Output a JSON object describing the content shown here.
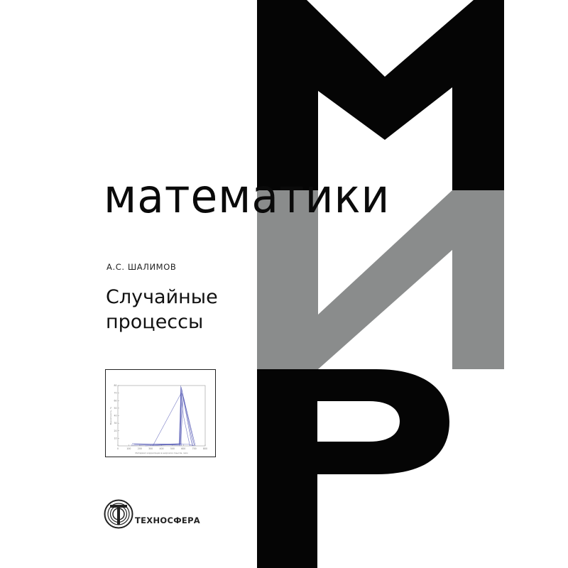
{
  "cover": {
    "series_letters": [
      "М",
      "И",
      "Р"
    ],
    "series_title": "математики",
    "author": "А.С. ШАЛИМОВ",
    "title_lines": [
      "Случайные",
      "процессы"
    ],
    "publisher": "ТЕХНОСФЕРА",
    "colors": {
      "black": "#050505",
      "gray": "#8a8c8c",
      "background": "#ffffff",
      "plot_lines": "#4a4fb0"
    }
  },
  "chart_data": {
    "type": "line",
    "xlabel": "Интервал корреляции в широком смысле, мкм",
    "ylabel": "Вероятность, %",
    "xlim": [
      0,
      800
    ],
    "ylim": [
      0,
      80
    ],
    "xticks": [
      "0",
      "100",
      "200",
      "300",
      "400",
      "500",
      "600",
      "700",
      "800"
    ],
    "yticks": [
      "10",
      "20",
      "30",
      "40",
      "50",
      "60",
      "70",
      "80"
    ],
    "grid": false,
    "series": [
      {
        "x": [
          120,
          560,
          580,
          690
        ],
        "y": [
          1,
          2,
          78,
          0
        ]
      },
      {
        "x": [
          150,
          565,
          585,
          700
        ],
        "y": [
          2,
          1,
          75,
          1
        ]
      },
      {
        "x": [
          200,
          570,
          590,
          680
        ],
        "y": [
          1,
          3,
          70,
          0
        ]
      },
      {
        "x": [
          250,
          575,
          600,
          710
        ],
        "y": [
          0,
          2,
          65,
          0
        ]
      },
      {
        "x": [
          320,
          580,
          600,
          660
        ],
        "y": [
          0,
          70,
          40,
          0
        ]
      },
      {
        "x": [
          570,
          575,
          580
        ],
        "y": [
          0,
          80,
          0
        ]
      },
      {
        "x": [
          130,
          650,
          700
        ],
        "y": [
          3,
          2,
          0
        ]
      }
    ]
  }
}
